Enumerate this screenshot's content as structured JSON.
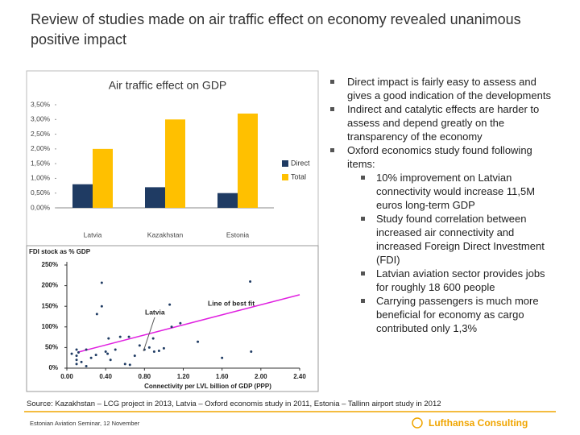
{
  "slide": {
    "title": "Review of studies made on air traffic effect on economy revealed unanimous positive impact",
    "bullets": [
      {
        "text": "Direct impact is fairly easy to assess and gives a good indication of the developments",
        "sub": []
      },
      {
        "text": "Indirect and catalytic effects are harder to assess and depend greatly on the transparency of the economy",
        "sub": []
      },
      {
        "text": "Oxford economics study found following items:",
        "sub": [
          "10% improvement on Latvian connectivity would increase 11,5M euros long-term GDP",
          "Study found correlation between increased air connectivity and increased Foreign Direct Investment (FDI)",
          "Latvian aviation sector provides jobs for roughly 18 600 people",
          "Carrying passengers is much more beneficial for economy as cargo contributed only 1,3%"
        ]
      }
    ],
    "source": "Source: Kazakhstan – LCG project in 2013, Latvia – Oxford economis study in 2011, Estonia – Tallinn airport study in 2012",
    "footer": "Estonian Aviation Seminar, 12 November",
    "logo": "Lufthansa Consulting"
  },
  "chart_data": [
    {
      "type": "bar",
      "title": "Air traffic effect on GDP",
      "categories": [
        "Latvia",
        "Kazakhstan",
        "Estonia"
      ],
      "series": [
        {
          "name": "Direct",
          "color": "#1f3b63",
          "values": [
            0.8,
            0.7,
            0.5
          ]
        },
        {
          "name": "Total",
          "color": "#ffc000",
          "values": [
            2.0,
            3.0,
            3.2
          ]
        }
      ],
      "ylim": [
        0,
        3.5
      ],
      "yticks": [
        {
          "value": 0,
          "label": "0,00%"
        },
        {
          "value": 0.5,
          "label": "0,50%"
        },
        {
          "value": 1,
          "label": "1,00%"
        },
        {
          "value": 1.5,
          "label": "1,50%"
        },
        {
          "value": 2,
          "label": "2,00%"
        },
        {
          "value": 2.5,
          "label": "2,50%"
        },
        {
          "value": 3,
          "label": "3,00%"
        },
        {
          "value": 3.5,
          "label": "3,50%"
        }
      ],
      "legend": "right"
    },
    {
      "type": "scatter",
      "title": "FDI stock as % GDP",
      "x_label": "Connectivity per LVL billion of GDP (PPP)",
      "color": "#1f3b63",
      "x": [
        0.1,
        0.1,
        0.1,
        0.1,
        0.12,
        0.15,
        0.2,
        0.25,
        0.3,
        0.31,
        0.36,
        0.36,
        0.4,
        0.42,
        0.43,
        0.45,
        0.5,
        0.55,
        0.6,
        0.64,
        0.7,
        0.75,
        0.8,
        0.85,
        0.9,
        0.89,
        0.95,
        1.06,
        1.08,
        1.17,
        1.35,
        1.6,
        1.89,
        1.9,
        0.2,
        0.05,
        0.65,
        1.0
      ],
      "values": [
        45,
        30,
        20,
        10,
        38,
        15,
        5,
        25,
        32,
        131,
        207,
        150,
        40,
        35,
        72,
        20,
        45,
        76,
        10,
        76,
        30,
        55,
        45,
        50,
        40,
        72,
        42,
        154,
        100,
        109,
        64,
        25,
        210,
        40,
        45,
        35,
        8,
        48
      ],
      "best_fit": {
        "name": "Line of best fit",
        "color": "#e020e0",
        "x": [
          0.12,
          2.4
        ],
        "values": [
          39,
          178
        ]
      },
      "annotation": "Latvia",
      "xlim": [
        0,
        2.4
      ],
      "xticks": [
        {
          "value": 0,
          "label": "0.00"
        },
        {
          "value": 0.4,
          "label": "0.40"
        },
        {
          "value": 0.8,
          "label": "0.80"
        },
        {
          "value": 1.2,
          "label": "1.20"
        },
        {
          "value": 1.6,
          "label": "1.60"
        },
        {
          "value": 2,
          "label": "2.00"
        },
        {
          "value": 2.4,
          "label": "2.40"
        }
      ],
      "ylim": [
        0,
        250
      ],
      "yticks": [
        {
          "value": 0,
          "label": "0%"
        },
        {
          "value": 50,
          "label": "50%"
        },
        {
          "value": 100,
          "label": "100%"
        },
        {
          "value": 150,
          "label": "150%"
        },
        {
          "value": 200,
          "label": "200%"
        },
        {
          "value": 250,
          "label": "250%"
        }
      ]
    }
  ]
}
